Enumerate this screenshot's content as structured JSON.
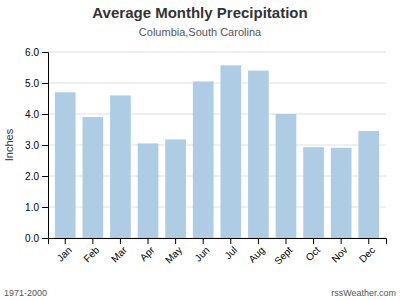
{
  "chart_data": {
    "type": "bar",
    "title": "Average Monthly Precipitation",
    "subtitle": "Columbia,South Carolina",
    "ylabel": "Inches",
    "categories": [
      "Jan",
      "Feb",
      "Mar",
      "Apr",
      "May",
      "Jun",
      "Jul",
      "Aug",
      "Sept",
      "Oct",
      "Nov",
      "Dec"
    ],
    "values": [
      4.7,
      3.9,
      4.6,
      3.05,
      3.18,
      5.05,
      5.57,
      5.4,
      4.0,
      2.93,
      2.91,
      3.45
    ],
    "color": "#aecde4",
    "ylim": [
      0.0,
      6.0
    ],
    "yticks": [
      {
        "value": 0,
        "label": "0.0"
      },
      {
        "value": 1,
        "label": "1.0"
      },
      {
        "value": 2,
        "label": "2.0"
      },
      {
        "value": 3,
        "label": "3.0"
      },
      {
        "value": 4,
        "label": "4.0"
      },
      {
        "value": 5,
        "label": "5.0"
      },
      {
        "value": 6,
        "label": "6.0"
      }
    ],
    "grid": true,
    "annotations": [
      "1971-2000",
      "rssWeather.com"
    ]
  }
}
